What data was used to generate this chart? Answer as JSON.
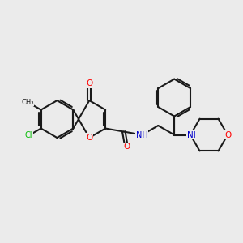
{
  "bg_color": "#ebebeb",
  "bond_color": "#1a1a1a",
  "bond_width": 1.5,
  "atom_colors": {
    "O": "#ff0000",
    "N": "#0000cd",
    "Cl": "#00bb00",
    "C": "#1a1a1a",
    "H": "#5a9ea0"
  },
  "font_size": 7.5
}
